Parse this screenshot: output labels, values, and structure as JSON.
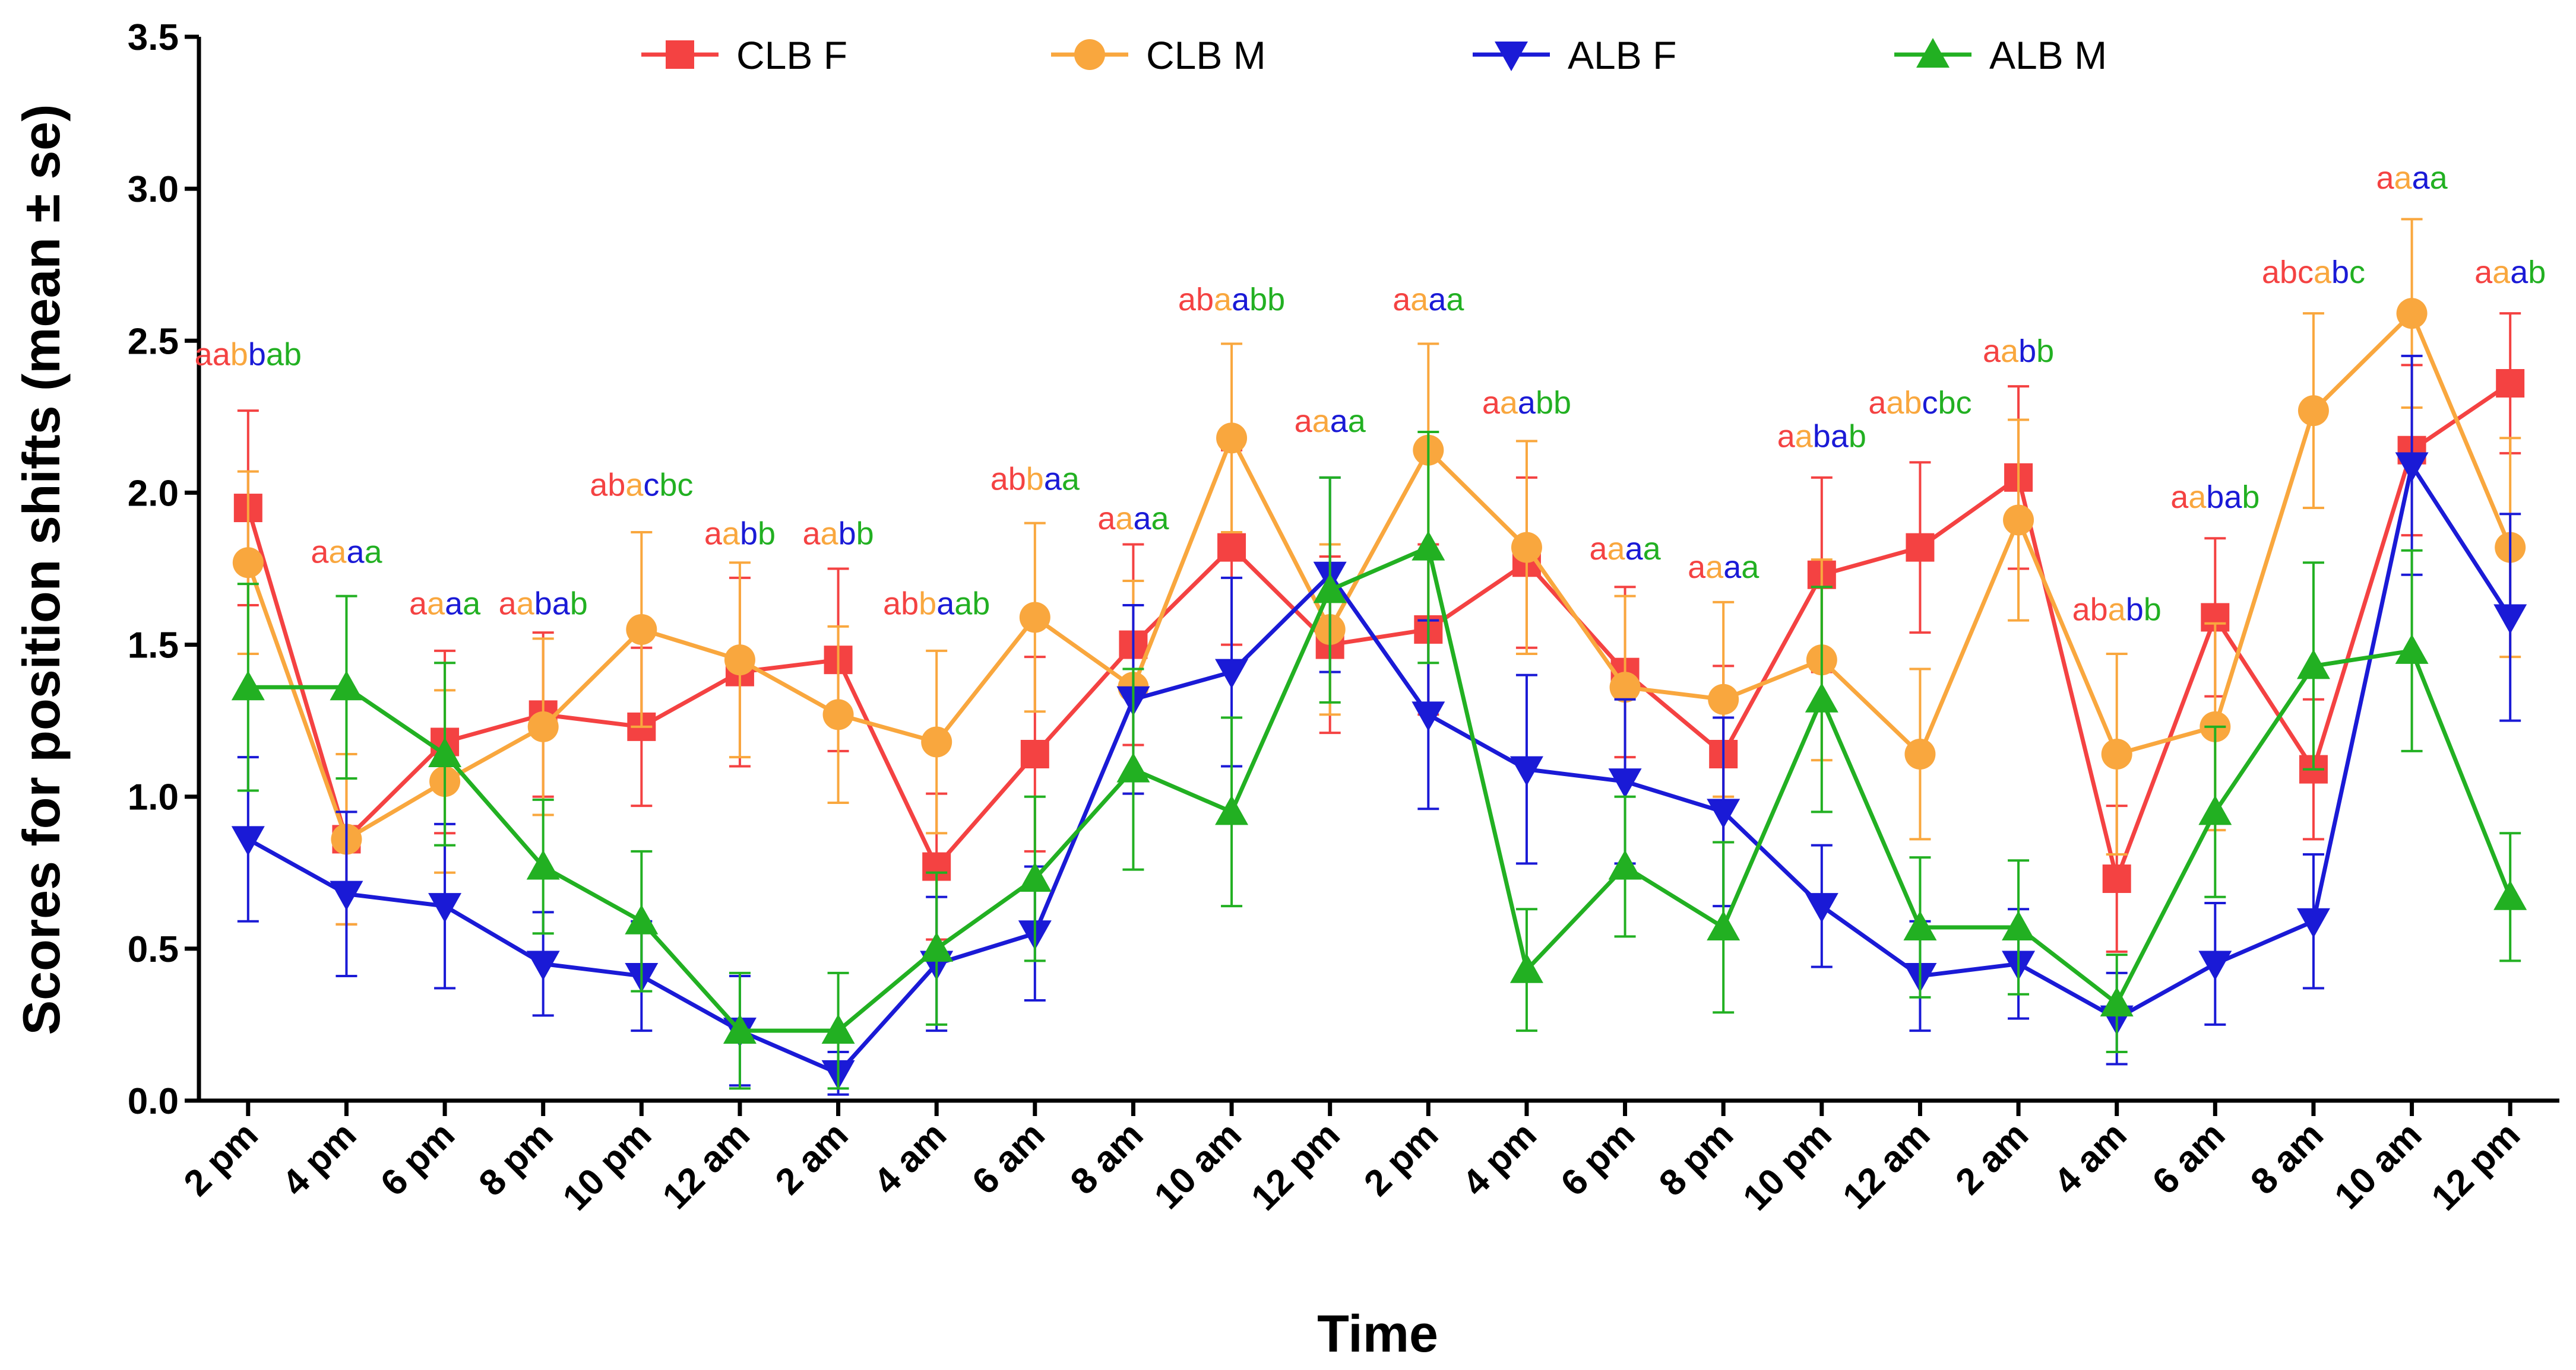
{
  "chart_data": {
    "type": "line",
    "title": "",
    "xlabel": "Time",
    "ylabel": "Scores for position shifts (mean ± se)",
    "ylim": [
      0,
      3.5
    ],
    "yticks": [
      "0.0",
      "0.5",
      "1.0",
      "1.5",
      "2.0",
      "2.5",
      "3.0",
      "3.5"
    ],
    "categories": [
      "2 pm",
      "4 pm",
      "6 pm",
      "8 pm",
      "10 pm",
      "12 am",
      "2 am",
      "4 am",
      "6 am",
      "8 am",
      "10 am",
      "12 pm",
      "2 pm",
      "4 pm",
      "6 pm",
      "8 pm",
      "10 pm",
      "12 am",
      "2 am",
      "4 am",
      "6 am",
      "8 am",
      "10 am",
      "12 pm"
    ],
    "legend_position": "top",
    "series": [
      {
        "name": "CLB F",
        "color": "#f44242",
        "marker": "square",
        "values": [
          1.95,
          0.86,
          1.18,
          1.27,
          1.23,
          1.41,
          1.45,
          0.77,
          1.14,
          1.5,
          1.82,
          1.5,
          1.55,
          1.77,
          1.41,
          1.14,
          1.73,
          1.82,
          2.05,
          0.73,
          1.59,
          1.09,
          2.14,
          2.36
        ],
        "se": [
          0.32,
          0.28,
          0.3,
          0.27,
          0.26,
          0.31,
          0.3,
          0.24,
          0.32,
          0.33,
          0.32,
          0.29,
          0.28,
          0.28,
          0.28,
          0.29,
          0.32,
          0.28,
          0.3,
          0.24,
          0.26,
          0.23,
          0.28,
          0.23
        ]
      },
      {
        "name": "CLB M",
        "color": "#f9a73e",
        "marker": "circle",
        "values": [
          1.77,
          0.86,
          1.05,
          1.23,
          1.55,
          1.45,
          1.27,
          1.18,
          1.59,
          1.36,
          2.18,
          1.55,
          2.14,
          1.82,
          1.36,
          1.32,
          1.45,
          1.14,
          1.91,
          1.14,
          1.23,
          2.27,
          2.59,
          1.82
        ],
        "se": [
          0.3,
          0.28,
          0.3,
          0.29,
          0.32,
          0.32,
          0.29,
          0.3,
          0.31,
          0.35,
          0.31,
          0.28,
          0.35,
          0.35,
          0.3,
          0.32,
          0.33,
          0.28,
          0.33,
          0.33,
          0.34,
          0.32,
          0.31,
          0.36
        ]
      },
      {
        "name": "ALB F",
        "color": "#1a1ad6",
        "marker": "triangle-down",
        "values": [
          0.86,
          0.68,
          0.64,
          0.45,
          0.41,
          0.23,
          0.09,
          0.45,
          0.55,
          1.32,
          1.41,
          1.73,
          1.27,
          1.09,
          1.05,
          0.95,
          0.64,
          0.41,
          0.45,
          0.27,
          0.45,
          0.59,
          2.09,
          1.59
        ],
        "se": [
          0.27,
          0.27,
          0.27,
          0.17,
          0.18,
          0.18,
          0.07,
          0.22,
          0.22,
          0.31,
          0.31,
          0.32,
          0.31,
          0.31,
          0.27,
          0.31,
          0.2,
          0.18,
          0.18,
          0.15,
          0.2,
          0.22,
          0.36,
          0.34
        ]
      },
      {
        "name": "ALB M",
        "color": "#22b022",
        "marker": "triangle-up",
        "values": [
          1.36,
          1.36,
          1.14,
          0.77,
          0.59,
          0.23,
          0.23,
          0.5,
          0.73,
          1.09,
          0.95,
          1.68,
          1.82,
          0.43,
          0.77,
          0.57,
          1.32,
          0.57,
          0.57,
          0.32,
          0.95,
          1.43,
          1.48,
          0.67
        ],
        "se": [
          0.34,
          0.3,
          0.3,
          0.22,
          0.23,
          0.19,
          0.19,
          0.25,
          0.27,
          0.33,
          0.31,
          0.37,
          0.38,
          0.2,
          0.23,
          0.28,
          0.37,
          0.23,
          0.22,
          0.16,
          0.28,
          0.34,
          0.33,
          0.21
        ]
      }
    ],
    "annotations": [
      {
        "x": 0,
        "y": 2.42,
        "text": "aabbab",
        "colors": [
          "#f44242",
          "#f44242",
          "#f9a73e",
          "#1a1ad6",
          "#22b022",
          "#22b022"
        ]
      },
      {
        "x": 1,
        "y": 1.77,
        "text": "aaaa",
        "colors": [
          "#f44242",
          "#f9a73e",
          "#1a1ad6",
          "#22b022"
        ]
      },
      {
        "x": 2,
        "y": 1.6,
        "text": "aaaa",
        "colors": [
          "#f44242",
          "#f9a73e",
          "#1a1ad6",
          "#22b022"
        ]
      },
      {
        "x": 3,
        "y": 1.6,
        "text": "aabab",
        "colors": [
          "#f44242",
          "#f9a73e",
          "#1a1ad6",
          "#1a1ad6",
          "#22b022"
        ]
      },
      {
        "x": 4,
        "y": 1.99,
        "text": "abacbc",
        "colors": [
          "#f44242",
          "#f44242",
          "#f9a73e",
          "#1a1ad6",
          "#22b022",
          "#22b022"
        ]
      },
      {
        "x": 5,
        "y": 1.83,
        "text": "aabb",
        "colors": [
          "#f44242",
          "#f9a73e",
          "#1a1ad6",
          "#22b022"
        ]
      },
      {
        "x": 6,
        "y": 1.83,
        "text": "aabb",
        "colors": [
          "#f44242",
          "#f9a73e",
          "#1a1ad6",
          "#22b022"
        ]
      },
      {
        "x": 7,
        "y": 1.6,
        "text": "abbaab",
        "colors": [
          "#f44242",
          "#f44242",
          "#f9a73e",
          "#1a1ad6",
          "#22b022",
          "#22b022"
        ]
      },
      {
        "x": 8,
        "y": 2.01,
        "text": "abbaa",
        "colors": [
          "#f44242",
          "#f44242",
          "#f9a73e",
          "#1a1ad6",
          "#22b022"
        ]
      },
      {
        "x": 9,
        "y": 1.88,
        "text": "aaaa",
        "colors": [
          "#f44242",
          "#f9a73e",
          "#1a1ad6",
          "#22b022"
        ]
      },
      {
        "x": 10,
        "y": 2.6,
        "text": "abaabb",
        "colors": [
          "#f44242",
          "#f44242",
          "#f9a73e",
          "#1a1ad6",
          "#22b022",
          "#22b022"
        ]
      },
      {
        "x": 11,
        "y": 2.2,
        "text": "aaaa",
        "colors": [
          "#f44242",
          "#f9a73e",
          "#1a1ad6",
          "#22b022"
        ]
      },
      {
        "x": 12,
        "y": 2.6,
        "text": "aaaa",
        "colors": [
          "#f44242",
          "#f9a73e",
          "#1a1ad6",
          "#22b022"
        ]
      },
      {
        "x": 13,
        "y": 2.26,
        "text": "aaabb",
        "colors": [
          "#f44242",
          "#f9a73e",
          "#1a1ad6",
          "#22b022",
          "#22b022"
        ]
      },
      {
        "x": 14,
        "y": 1.78,
        "text": "aaaa",
        "colors": [
          "#f44242",
          "#f9a73e",
          "#1a1ad6",
          "#22b022"
        ]
      },
      {
        "x": 15,
        "y": 1.72,
        "text": "aaaa",
        "colors": [
          "#f44242",
          "#f9a73e",
          "#1a1ad6",
          "#22b022"
        ]
      },
      {
        "x": 16,
        "y": 2.15,
        "text": "aabab",
        "colors": [
          "#f44242",
          "#f9a73e",
          "#1a1ad6",
          "#1a1ad6",
          "#22b022"
        ]
      },
      {
        "x": 17,
        "y": 2.26,
        "text": "aabcbc",
        "colors": [
          "#f44242",
          "#f9a73e",
          "#f9a73e",
          "#1a1ad6",
          "#22b022",
          "#22b022"
        ]
      },
      {
        "x": 18,
        "y": 2.43,
        "text": "aabb",
        "colors": [
          "#f44242",
          "#f9a73e",
          "#1a1ad6",
          "#22b022"
        ]
      },
      {
        "x": 19,
        "y": 1.58,
        "text": "ababb",
        "colors": [
          "#f44242",
          "#f44242",
          "#f9a73e",
          "#1a1ad6",
          "#22b022"
        ]
      },
      {
        "x": 20,
        "y": 1.95,
        "text": "aabab",
        "colors": [
          "#f44242",
          "#f9a73e",
          "#1a1ad6",
          "#1a1ad6",
          "#22b022"
        ]
      },
      {
        "x": 21,
        "y": 2.69,
        "text": "abcabc",
        "colors": [
          "#f44242",
          "#f44242",
          "#f44242",
          "#f9a73e",
          "#1a1ad6",
          "#22b022"
        ]
      },
      {
        "x": 22,
        "y": 3.0,
        "text": "aaaa",
        "colors": [
          "#f44242",
          "#f9a73e",
          "#1a1ad6",
          "#22b022"
        ]
      },
      {
        "x": 23,
        "y": 2.69,
        "text": "aaab",
        "colors": [
          "#f44242",
          "#f9a73e",
          "#1a1ad6",
          "#22b022"
        ]
      }
    ]
  }
}
